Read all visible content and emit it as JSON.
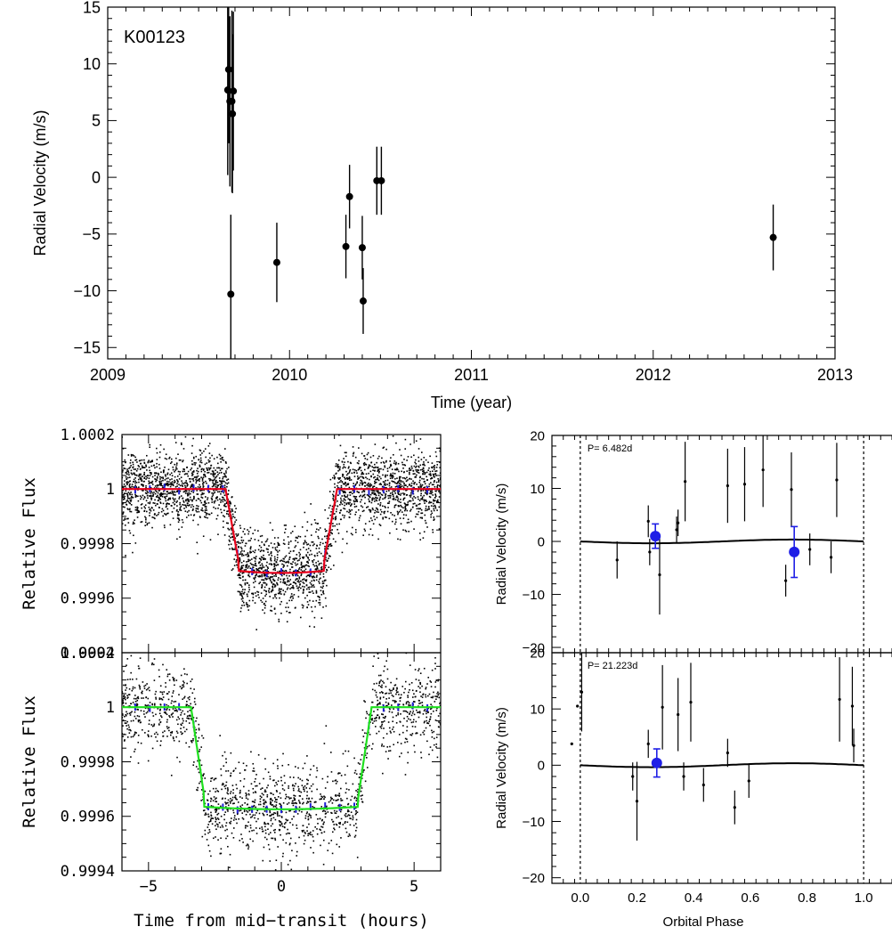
{
  "chart_data": [
    {
      "type": "scatter",
      "name": "rv-time",
      "label": "K00123",
      "xlabel": "Time (year)",
      "ylabel": "Radial Velocity (m/s)",
      "xlim": [
        2009,
        2013
      ],
      "ylim": [
        -16,
        15
      ],
      "xticks": [
        2009,
        2010,
        2011,
        2012,
        2013
      ],
      "yticks": [
        -15,
        -10,
        -5,
        0,
        5,
        10,
        15
      ],
      "points": [
        {
          "x": 2009.66,
          "y": 7.7,
          "err": 7.5
        },
        {
          "x": 2009.665,
          "y": 9.5,
          "err": 6.5
        },
        {
          "x": 2009.672,
          "y": 6.7,
          "err": 7.5
        },
        {
          "x": 2009.683,
          "y": 6.7,
          "err": 8.0
        },
        {
          "x": 2009.686,
          "y": 5.6,
          "err": 7.0
        },
        {
          "x": 2009.691,
          "y": 7.6,
          "err": 7.0
        },
        {
          "x": 2009.677,
          "y": -10.3,
          "err": 7.0
        },
        {
          "x": 2009.93,
          "y": -7.5,
          "err": 3.5
        },
        {
          "x": 2010.31,
          "y": -6.1,
          "err": 2.8
        },
        {
          "x": 2010.33,
          "y": -1.7,
          "err": 2.8
        },
        {
          "x": 2010.4,
          "y": -6.2,
          "err": 2.8
        },
        {
          "x": 2010.405,
          "y": -10.9,
          "err": 2.9
        },
        {
          "x": 2010.48,
          "y": -0.3,
          "err": 3.0
        },
        {
          "x": 2010.505,
          "y": -0.3,
          "err": 3.0
        },
        {
          "x": 2012.66,
          "y": -5.3,
          "err": 2.9
        }
      ]
    },
    {
      "type": "scatter",
      "name": "transit-top",
      "ylabel": "Relative Flux",
      "xlim": [
        -6,
        6
      ],
      "ylim": [
        0.9994,
        1.0002
      ],
      "xticks": [
        -5,
        0,
        5
      ],
      "yticks": [
        0.9994,
        0.9996,
        0.9998,
        1,
        1.0002
      ],
      "ytick_labels": [
        "0.9994",
        "0.9996",
        "0.9998",
        "1",
        "1.0002"
      ],
      "model": {
        "depth": 0.0003,
        "t_full_start": 1.6,
        "t_contact": 2.1,
        "model_color": "#e8001c"
      },
      "scatter_sigma": 7e-05,
      "binned_color": "#1f1fd6"
    },
    {
      "type": "scatter",
      "name": "transit-bottom",
      "ylabel": "Relative Flux",
      "xlabel": "Time from mid−transit (hours)",
      "xlim": [
        -6,
        6
      ],
      "ylim": [
        0.9994,
        1.0002
      ],
      "xticks": [
        -5,
        0,
        5
      ],
      "yticks": [
        0.9994,
        0.9996,
        0.9998,
        1,
        1.0002
      ],
      "ytick_labels": [
        "0.9994",
        "0.9996",
        "0.9998",
        "1",
        "1.0002"
      ],
      "model": {
        "depth": 0.000365,
        "t_full_start": 2.9,
        "t_contact": 3.4,
        "model_color": "#1fe01f"
      },
      "scatter_sigma": 8e-05,
      "binned_color": "#1f1fd6"
    },
    {
      "type": "scatter",
      "name": "phase-top",
      "label": "P= 6.482d",
      "ylabel": "Radial Velocity (m/s)",
      "xlim": [
        -0.1,
        1.1
      ],
      "ylim": [
        -21,
        20
      ],
      "xticks": [
        0.0,
        0.2,
        0.4,
        0.6,
        0.8,
        1.0
      ],
      "yticks": [
        -20,
        -10,
        0,
        10,
        20
      ],
      "dashed_x": [
        0.0,
        1.0
      ],
      "model_amp": 0.35,
      "points": [
        {
          "x": 0.13,
          "y": -3.5,
          "err": 3.5
        },
        {
          "x": 0.24,
          "y": 3.8,
          "err": 3.0
        },
        {
          "x": 0.245,
          "y": -2.0,
          "err": 2.5
        },
        {
          "x": 0.28,
          "y": -6.3,
          "err": 7.5
        },
        {
          "x": 0.34,
          "y": 2.2,
          "err": 2.5
        },
        {
          "x": 0.345,
          "y": 3.5,
          "err": 2.5
        },
        {
          "x": 0.37,
          "y": 11.3,
          "err": 7.5
        },
        {
          "x": 0.52,
          "y": 10.5,
          "err": 7.0
        },
        {
          "x": 0.58,
          "y": 10.8,
          "err": 7.0
        },
        {
          "x": 0.645,
          "y": 13.5,
          "err": 7.0
        },
        {
          "x": 0.745,
          "y": 9.8,
          "err": 7.0
        },
        {
          "x": 0.725,
          "y": -7.4,
          "err": 3.0
        },
        {
          "x": 0.81,
          "y": -1.5,
          "err": 3.0
        },
        {
          "x": 0.885,
          "y": -3.0,
          "err": 3.0
        },
        {
          "x": 0.905,
          "y": 11.6,
          "err": 7.0
        }
      ],
      "binned": [
        {
          "x": 0.265,
          "y": 1.0,
          "err": 2.3
        },
        {
          "x": 0.755,
          "y": -2.0,
          "err": 4.8
        }
      ]
    },
    {
      "type": "scatter",
      "name": "phase-bottom",
      "label": "P= 21.223d",
      "ylabel": "Radial Velocity (m/s)",
      "xlabel": "Orbital Phase",
      "xlim": [
        -0.1,
        1.1
      ],
      "ylim": [
        -21,
        20
      ],
      "xticks": [
        0.0,
        0.2,
        0.4,
        0.6,
        0.8,
        1.0
      ],
      "xtick_labels": [
        "0.0",
        "0.2",
        "0.4",
        "0.6",
        "0.8",
        "1.0"
      ],
      "yticks": [
        -20,
        -10,
        0,
        10,
        20
      ],
      "dashed_x": [
        0.0,
        1.0
      ],
      "model_amp": 0.35,
      "points": [
        {
          "x": -0.01,
          "y": 10.5,
          "err": 0
        },
        {
          "x": -0.03,
          "y": 3.8,
          "err": 0
        },
        {
          "x": 0.005,
          "y": 13.0,
          "err": 7.0
        },
        {
          "x": 0.185,
          "y": -2.0,
          "err": 2.5
        },
        {
          "x": 0.2,
          "y": -6.4,
          "err": 7.0
        },
        {
          "x": 0.24,
          "y": 3.8,
          "err": 2.5
        },
        {
          "x": 0.29,
          "y": 10.3,
          "err": 7.5
        },
        {
          "x": 0.345,
          "y": 9.0,
          "err": 6.5
        },
        {
          "x": 0.365,
          "y": -2.0,
          "err": 2.5
        },
        {
          "x": 0.39,
          "y": 11.2,
          "err": 7.0
        },
        {
          "x": 0.435,
          "y": -3.5,
          "err": 3.0
        },
        {
          "x": 0.52,
          "y": 2.2,
          "err": 2.5
        },
        {
          "x": 0.545,
          "y": -7.5,
          "err": 3.0
        },
        {
          "x": 0.595,
          "y": -2.8,
          "err": 3.0
        },
        {
          "x": 0.915,
          "y": 11.7,
          "err": 7.5
        },
        {
          "x": 0.96,
          "y": 10.5,
          "err": 7.0
        },
        {
          "x": 0.965,
          "y": 3.5,
          "err": 3.0
        }
      ],
      "binned": [
        {
          "x": 0.27,
          "y": 0.4,
          "err": 2.5
        }
      ]
    }
  ]
}
